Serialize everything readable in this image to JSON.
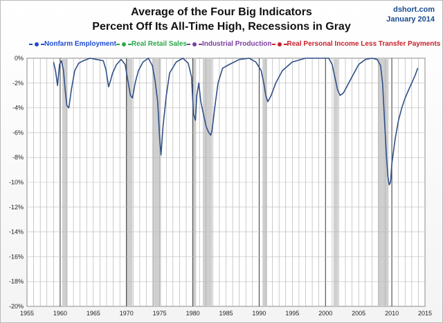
{
  "header": {
    "title_line1": "Average of the Four Big Indicators",
    "title_line2": "Percent Off Its All-Time High, Recessions in Gray",
    "source": "dshort.com",
    "date": "January 2014"
  },
  "legend": [
    {
      "label": "Nonfarm Employment",
      "color": "#1f4bd1"
    },
    {
      "label": "Real Retail Sales",
      "color": "#2aa84a"
    },
    {
      "label": "Industrial Production",
      "color": "#7b3fa0"
    },
    {
      "label": "Real Personal Income Less Transfer Payments",
      "color": "#c8202a"
    }
  ],
  "chart_data": {
    "type": "line",
    "title": "Average of the Four Big Indicators",
    "subtitle": "Percent Off Its All-Time High, Recessions in Gray",
    "xlim": [
      1955,
      2015
    ],
    "ylim": [
      -20,
      0
    ],
    "x_ticks": [
      1955,
      1960,
      1965,
      1970,
      1975,
      1980,
      1985,
      1990,
      1995,
      2000,
      2005,
      2010,
      2015
    ],
    "y_ticks": [
      "0%",
      "-2%",
      "-4%",
      "-6%",
      "-8%",
      "-10%",
      "-12%",
      "-14%",
      "-16%",
      "-18%",
      "-20%"
    ],
    "y_tick_values": [
      0,
      -2,
      -4,
      -6,
      -8,
      -10,
      -12,
      -14,
      -16,
      -18,
      -20
    ],
    "grid": {
      "vertical_yearly": true,
      "horizontal": true
    },
    "series_color": "#2f4f86",
    "recessions": [
      [
        1960.3,
        1961.1
      ],
      [
        1969.9,
        1970.9
      ],
      [
        1973.9,
        1975.2
      ],
      [
        1980.0,
        1980.5
      ],
      [
        1981.5,
        1982.9
      ],
      [
        1990.5,
        1991.2
      ],
      [
        2001.2,
        2001.9
      ],
      [
        2007.9,
        2009.5
      ]
    ],
    "series": [
      {
        "x": [
          1959.0,
          1959.3,
          1959.6,
          1959.9,
          1960.2,
          1960.5,
          1960.8,
          1961.0,
          1961.3,
          1961.7,
          1962.2,
          1962.8,
          1963.5,
          1964.5,
          1965.5,
          1966.5,
          1966.9,
          1967.3,
          1967.6,
          1967.9,
          1968.5,
          1969.2,
          1969.8,
          1970.2,
          1970.6,
          1970.9,
          1971.3,
          1971.8,
          1972.5,
          1973.3,
          1973.9,
          1974.3,
          1974.7,
          1975.0,
          1975.2,
          1975.5,
          1976.0,
          1976.5,
          1977.5,
          1978.5,
          1979.3,
          1979.8,
          1980.1,
          1980.4,
          1980.6,
          1980.9,
          1981.2,
          1981.6,
          1982.0,
          1982.4,
          1982.7,
          1982.9,
          1983.3,
          1983.8,
          1984.5,
          1985.5,
          1987.0,
          1988.5,
          1989.5,
          1990.3,
          1990.7,
          1991.0,
          1991.3,
          1991.8,
          1992.5,
          1993.5,
          1995.0,
          1997.0,
          1999.0,
          2000.5,
          2001.0,
          2001.4,
          2001.8,
          2002.2,
          2002.7,
          2003.3,
          2004.0,
          2005.0,
          2006.0,
          2007.0,
          2007.8,
          2008.3,
          2008.6,
          2008.9,
          2009.2,
          2009.4,
          2009.6,
          2009.8,
          2010.0,
          2010.5,
          2011.0,
          2011.5,
          2012.0,
          2012.5,
          2013.0,
          2013.5,
          2013.9
        ],
        "y": [
          -0.3,
          -1.0,
          -2.2,
          -0.5,
          -0.2,
          -1.0,
          -2.8,
          -3.8,
          -4.0,
          -2.5,
          -1.0,
          -0.4,
          -0.2,
          0.0,
          -0.1,
          -0.2,
          -0.9,
          -2.3,
          -1.8,
          -1.2,
          -0.5,
          -0.1,
          -0.5,
          -1.8,
          -3.0,
          -3.2,
          -2.0,
          -1.0,
          -0.3,
          0.0,
          -0.6,
          -1.8,
          -3.5,
          -6.5,
          -7.8,
          -5.5,
          -3.0,
          -1.2,
          -0.3,
          0.0,
          -0.4,
          -1.5,
          -4.5,
          -5.0,
          -3.0,
          -2.0,
          -3.5,
          -4.5,
          -5.5,
          -6.0,
          -6.2,
          -5.8,
          -4.0,
          -2.0,
          -0.8,
          -0.5,
          -0.1,
          0.0,
          -0.3,
          -1.0,
          -2.0,
          -3.0,
          -3.5,
          -3.0,
          -2.0,
          -1.0,
          -0.3,
          0.0,
          0.0,
          0.0,
          -0.5,
          -1.5,
          -2.5,
          -3.0,
          -2.8,
          -2.2,
          -1.5,
          -0.5,
          -0.1,
          0.0,
          -0.1,
          -0.6,
          -2.0,
          -5.0,
          -8.0,
          -9.5,
          -10.2,
          -10.0,
          -8.5,
          -6.5,
          -5.0,
          -4.0,
          -3.2,
          -2.6,
          -2.0,
          -1.4,
          -0.8
        ]
      }
    ]
  }
}
